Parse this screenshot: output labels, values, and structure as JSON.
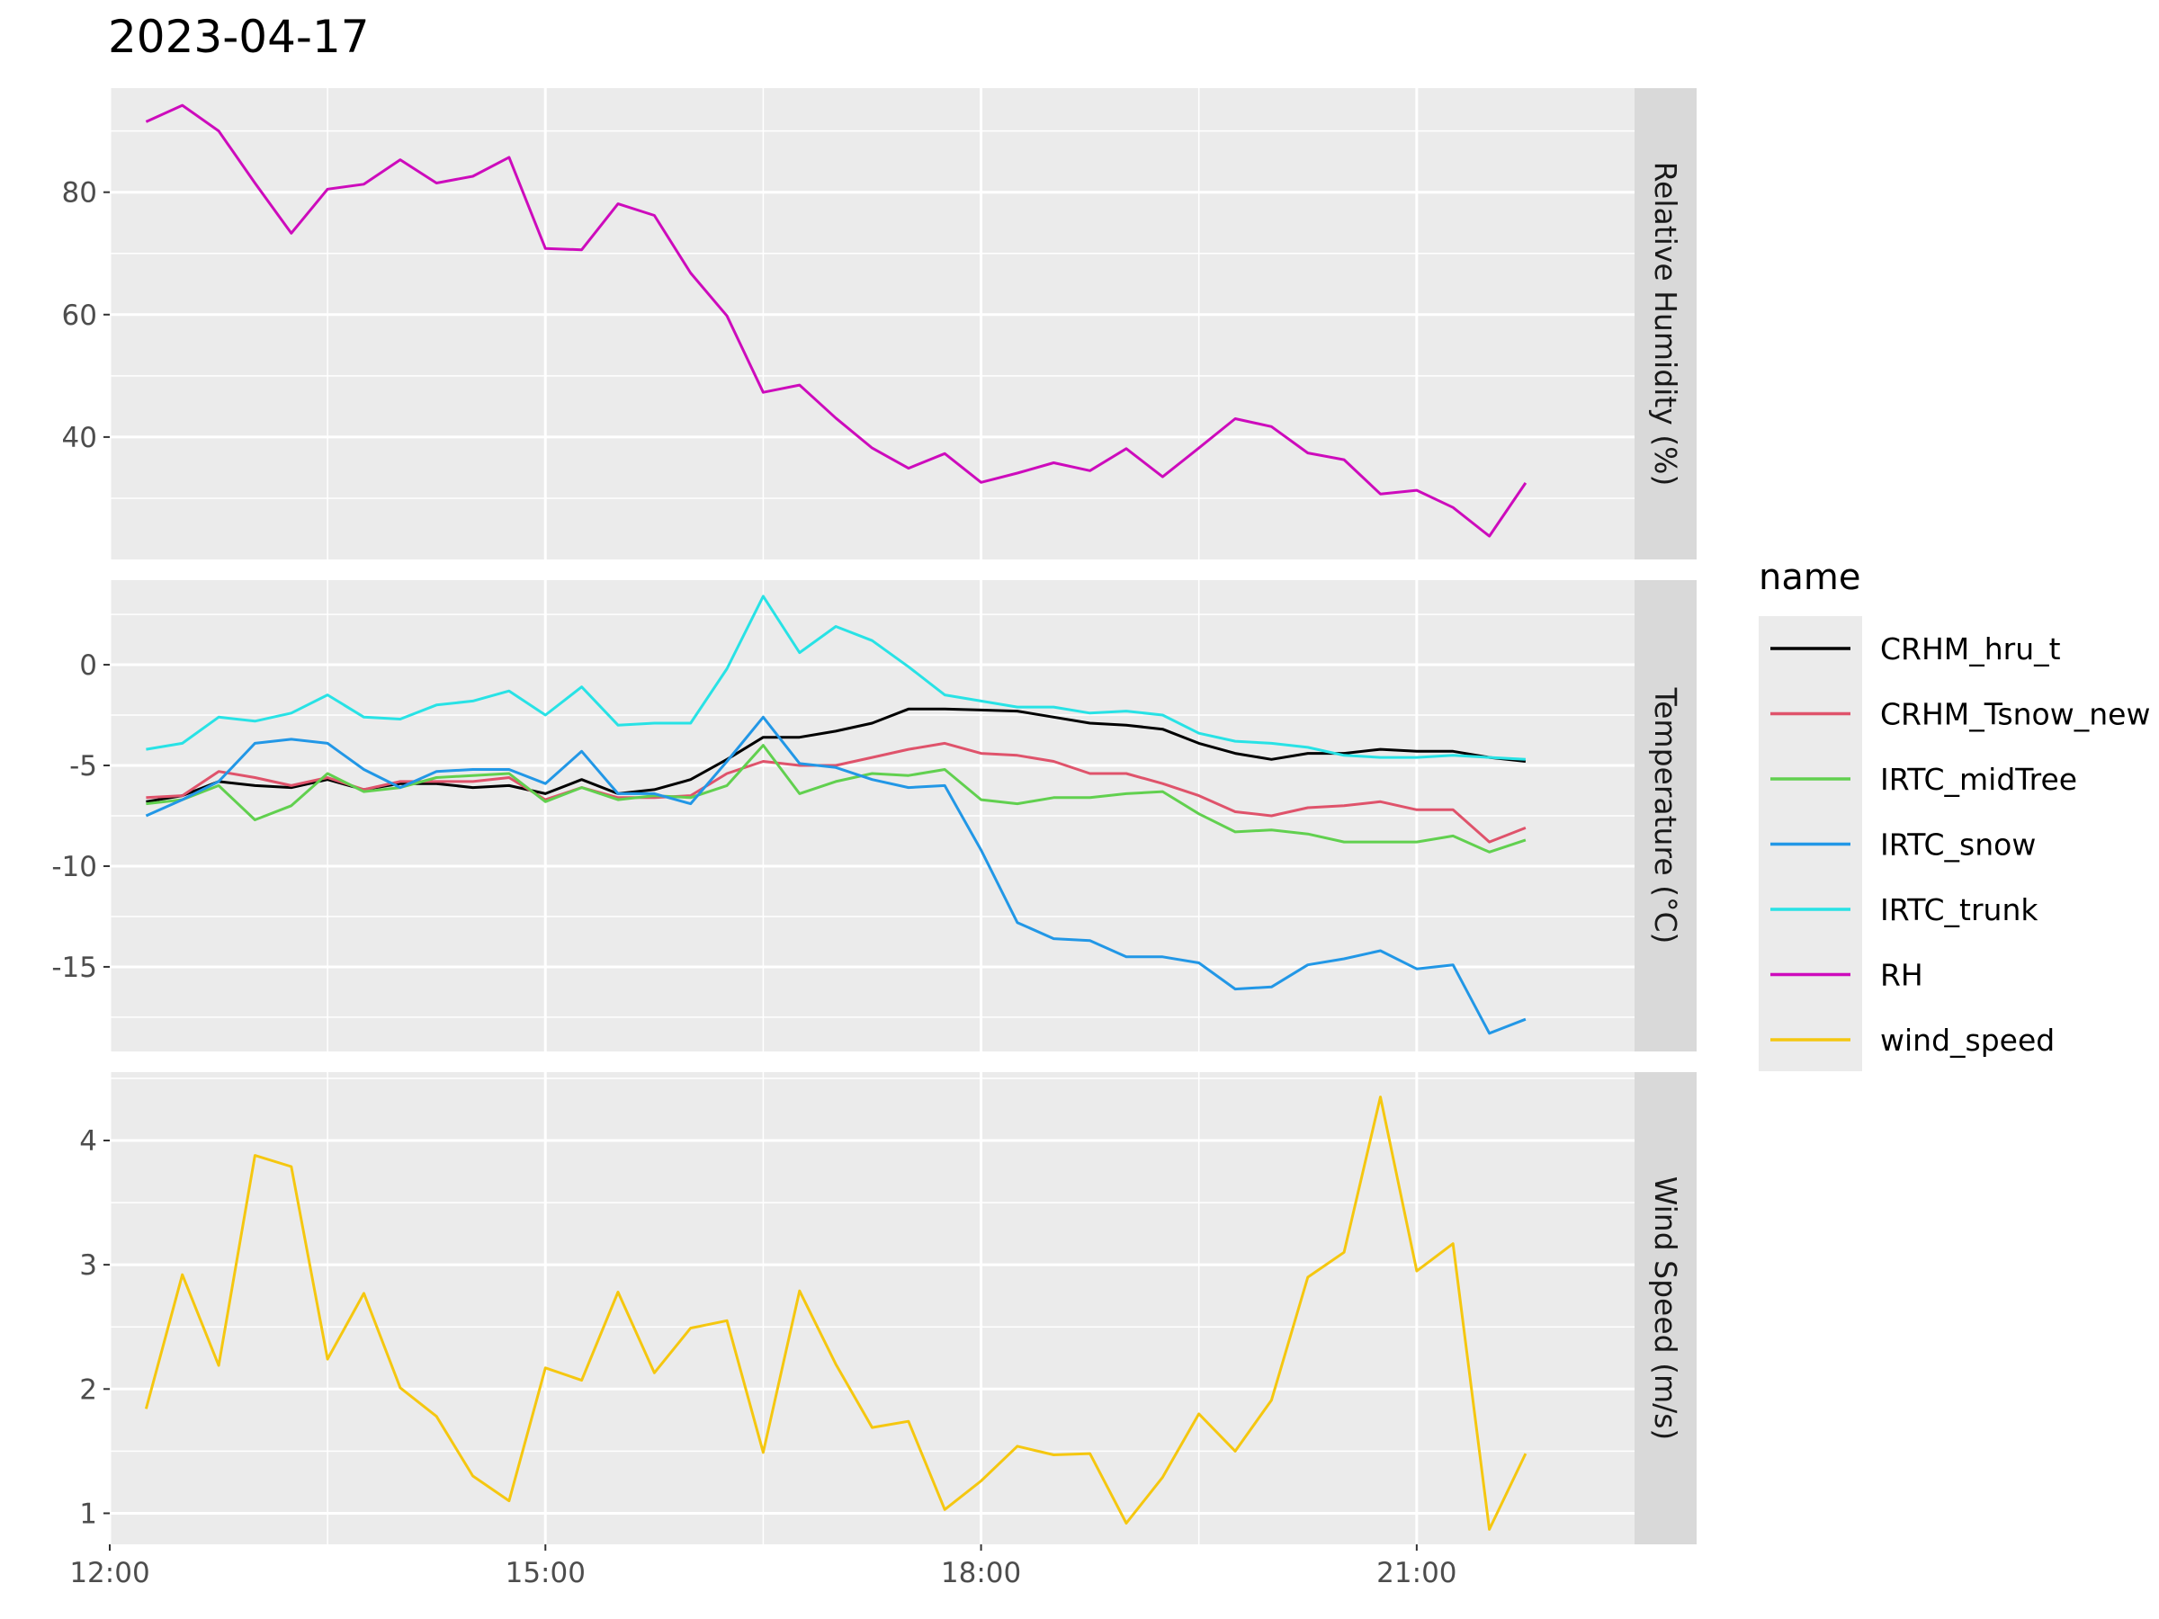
{
  "chart_data": {
    "type": "line",
    "title": "2023-04-17",
    "x_axis": {
      "tick_labels": [
        "12:00",
        "15:00",
        "18:00",
        "21:00"
      ],
      "range": [
        "2023-04-17 12:00",
        "2023-04-17 22:30"
      ]
    },
    "x": [
      "12:15",
      "12:30",
      "12:45",
      "13:00",
      "13:15",
      "13:30",
      "13:45",
      "14:00",
      "14:15",
      "14:30",
      "14:45",
      "15:00",
      "15:15",
      "15:30",
      "15:45",
      "16:00",
      "16:15",
      "16:30",
      "16:45",
      "17:00",
      "17:15",
      "17:30",
      "17:45",
      "18:00",
      "18:15",
      "18:30",
      "18:45",
      "19:00",
      "19:15",
      "19:30",
      "19:45",
      "20:00",
      "20:15",
      "20:30",
      "20:45",
      "21:00",
      "21:15",
      "21:30",
      "21:45"
    ],
    "legend": {
      "title": "name",
      "position": "right"
    },
    "grid": true,
    "panels": [
      {
        "strip_label": "Relative Humidity (%)",
        "ylim": [
          20,
          97
        ],
        "y_ticks": [
          40,
          60,
          80
        ],
        "y_tick_labels": [
          "40",
          "60",
          "80"
        ],
        "series": [
          {
            "name": "RH",
            "color": "#CD0BBC",
            "values": [
              91.5,
              94.2,
              90,
              81.5,
              73.3,
              80.5,
              81.3,
              85.3,
              81.5,
              82.6,
              85.7,
              70.8,
              70.6,
              78.1,
              76.2,
              66.8,
              59.8,
              47.3,
              48.5,
              43.1,
              38.2,
              34.9,
              37.3,
              32.6,
              34.1,
              35.8,
              34.5,
              38.1,
              33.5,
              38.2,
              43.0,
              41.7,
              37.4,
              36.3,
              30.7,
              31.3,
              28.5,
              23.8,
              32.5
            ]
          }
        ]
      },
      {
        "strip_label": "Temperature (°C)",
        "ylim": [
          -19.2,
          4.2
        ],
        "y_ticks": [
          -15,
          -10,
          -5,
          0
        ],
        "y_tick_labels": [
          "-15",
          "-10",
          "-5",
          "0"
        ],
        "series": [
          {
            "name": "CRHM_hru_t",
            "color": "#000000",
            "values": [
              -6.8,
              -6.5,
              -5.8,
              -6.0,
              -6.1,
              -5.7,
              -6.2,
              -5.9,
              -5.9,
              -6.1,
              -6.0,
              -6.4,
              -5.7,
              -6.4,
              -6.2,
              -5.7,
              -4.7,
              -3.6,
              -3.6,
              -3.3,
              -2.9,
              -2.2,
              -2.2,
              -2.25,
              -2.3,
              -2.6,
              -2.9,
              -3.0,
              -3.2,
              -3.9,
              -4.4,
              -4.7,
              -4.4,
              -4.4,
              -4.2,
              -4.3,
              -4.3,
              -4.6,
              -4.8
            ]
          },
          {
            "name": "CRHM_Tsnow_new",
            "color": "#DF536B",
            "values": [
              -6.6,
              -6.5,
              -5.3,
              -5.6,
              -6.0,
              -5.6,
              -6.2,
              -5.8,
              -5.8,
              -5.8,
              -5.6,
              -6.7,
              -6.1,
              -6.6,
              -6.6,
              -6.5,
              -5.4,
              -4.8,
              -5.0,
              -5.0,
              -4.6,
              -4.2,
              -3.9,
              -4.4,
              -4.5,
              -4.8,
              -5.4,
              -5.4,
              -5.9,
              -6.5,
              -7.3,
              -7.5,
              -7.1,
              -7.0,
              -6.8,
              -7.2,
              -7.2,
              -8.8,
              -8.1
            ]
          },
          {
            "name": "IRTC_midTree",
            "color": "#61D04F",
            "values": [
              -6.9,
              -6.7,
              -6.0,
              -7.7,
              -7.0,
              -5.4,
              -6.3,
              -6.1,
              -5.6,
              -5.5,
              -5.4,
              -6.8,
              -6.1,
              -6.7,
              -6.5,
              -6.6,
              -6.0,
              -4.0,
              -6.4,
              -5.8,
              -5.4,
              -5.5,
              -5.2,
              -6.7,
              -6.9,
              -6.6,
              -6.6,
              -6.4,
              -6.3,
              -7.4,
              -8.3,
              -8.2,
              -8.4,
              -8.8,
              -8.8,
              -8.8,
              -8.5,
              -9.3,
              -8.7
            ]
          },
          {
            "name": "IRTC_snow",
            "color": "#2297E6",
            "values": [
              -7.5,
              -6.7,
              -5.8,
              -3.9,
              -3.7,
              -3.9,
              -5.2,
              -6.1,
              -5.3,
              -5.2,
              -5.2,
              -5.9,
              -4.3,
              -6.4,
              -6.4,
              -6.9,
              -4.8,
              -2.6,
              -4.9,
              -5.1,
              -5.7,
              -6.1,
              -6.0,
              -9.2,
              -12.8,
              -13.6,
              -13.7,
              -14.5,
              -14.5,
              -14.8,
              -16.1,
              -16.0,
              -14.9,
              -14.6,
              -14.2,
              -15.1,
              -14.9,
              -18.3,
              -17.6
            ]
          },
          {
            "name": "IRTC_trunk",
            "color": "#28E2E5",
            "values": [
              -4.2,
              -3.9,
              -2.6,
              -2.8,
              -2.4,
              -1.5,
              -2.6,
              -2.7,
              -2.0,
              -1.8,
              -1.3,
              -2.5,
              -1.1,
              -3.0,
              -2.9,
              -2.9,
              -0.2,
              3.4,
              0.6,
              1.9,
              1.2,
              -0.1,
              -1.5,
              -1.8,
              -2.1,
              -2.1,
              -2.4,
              -2.3,
              -2.5,
              -3.4,
              -3.8,
              -3.9,
              -4.1,
              -4.5,
              -4.6,
              -4.6,
              -4.5,
              -4.6,
              -4.7
            ]
          }
        ]
      },
      {
        "strip_label": "Wind Speed (m/s)",
        "ylim": [
          0.75,
          4.55
        ],
        "y_ticks": [
          1,
          2,
          3,
          4
        ],
        "y_tick_labels": [
          "1",
          "2",
          "3",
          "4"
        ],
        "series": [
          {
            "name": "wind_speed",
            "color": "#F5C710",
            "values": [
              1.84,
              2.92,
              2.19,
              3.88,
              3.79,
              2.24,
              2.77,
              2.01,
              1.78,
              1.3,
              1.1,
              2.17,
              2.07,
              2.78,
              2.13,
              2.49,
              2.55,
              1.49,
              2.79,
              2.2,
              1.69,
              1.74,
              1.03,
              1.26,
              1.54,
              1.47,
              1.48,
              0.92,
              1.29,
              1.8,
              1.5,
              1.91,
              2.9,
              3.1,
              4.35,
              2.95,
              3.17,
              0.87,
              1.48
            ]
          }
        ]
      }
    ],
    "legend_entries": [
      {
        "name": "CRHM_hru_t",
        "color": "#000000"
      },
      {
        "name": "CRHM_Tsnow_new",
        "color": "#DF536B"
      },
      {
        "name": "IRTC_midTree",
        "color": "#61D04F"
      },
      {
        "name": "IRTC_snow",
        "color": "#2297E6"
      },
      {
        "name": "IRTC_trunk",
        "color": "#28E2E5"
      },
      {
        "name": "RH",
        "color": "#CD0BBC"
      },
      {
        "name": "wind_speed",
        "color": "#F5C710"
      }
    ]
  }
}
